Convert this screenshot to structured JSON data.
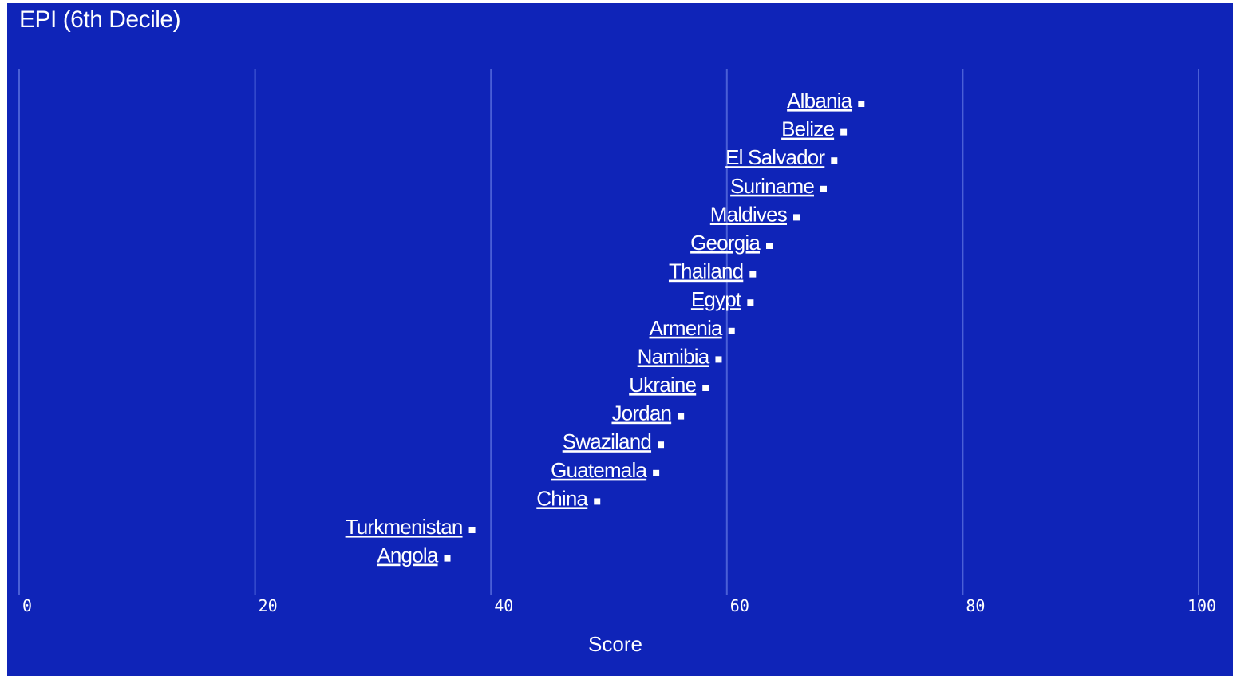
{
  "chart_data": {
    "type": "scatter",
    "title": "EPI (6th Decile)",
    "xlabel": "Score",
    "ylabel": "",
    "xlim": [
      0,
      100
    ],
    "xticks": [
      "0",
      "20",
      "40",
      "60",
      "80",
      "100"
    ],
    "grid": true,
    "colors": {
      "background": "#0f24b8",
      "grid": "#4a5fd6",
      "marker": "#ffffff",
      "text": "#ffffff"
    },
    "points": [
      {
        "label": "Albania",
        "x": 71.4
      },
      {
        "label": "Belize",
        "x": 69.9
      },
      {
        "label": "El Salvador",
        "x": 69.1
      },
      {
        "label": "Suriname",
        "x": 68.2
      },
      {
        "label": "Maldives",
        "x": 65.9
      },
      {
        "label": "Georgia",
        "x": 63.6
      },
      {
        "label": "Thailand",
        "x": 62.2
      },
      {
        "label": "Egypt",
        "x": 62.0
      },
      {
        "label": "Armenia",
        "x": 60.4
      },
      {
        "label": "Namibia",
        "x": 59.3
      },
      {
        "label": "Ukraine",
        "x": 58.2
      },
      {
        "label": "Jordan",
        "x": 56.1
      },
      {
        "label": "Swaziland",
        "x": 54.4
      },
      {
        "label": "Guatemala",
        "x": 54.0
      },
      {
        "label": "China",
        "x": 49.0
      },
      {
        "label": "Turkmenistan",
        "x": 38.4
      },
      {
        "label": "Angola",
        "x": 36.3
      }
    ]
  }
}
